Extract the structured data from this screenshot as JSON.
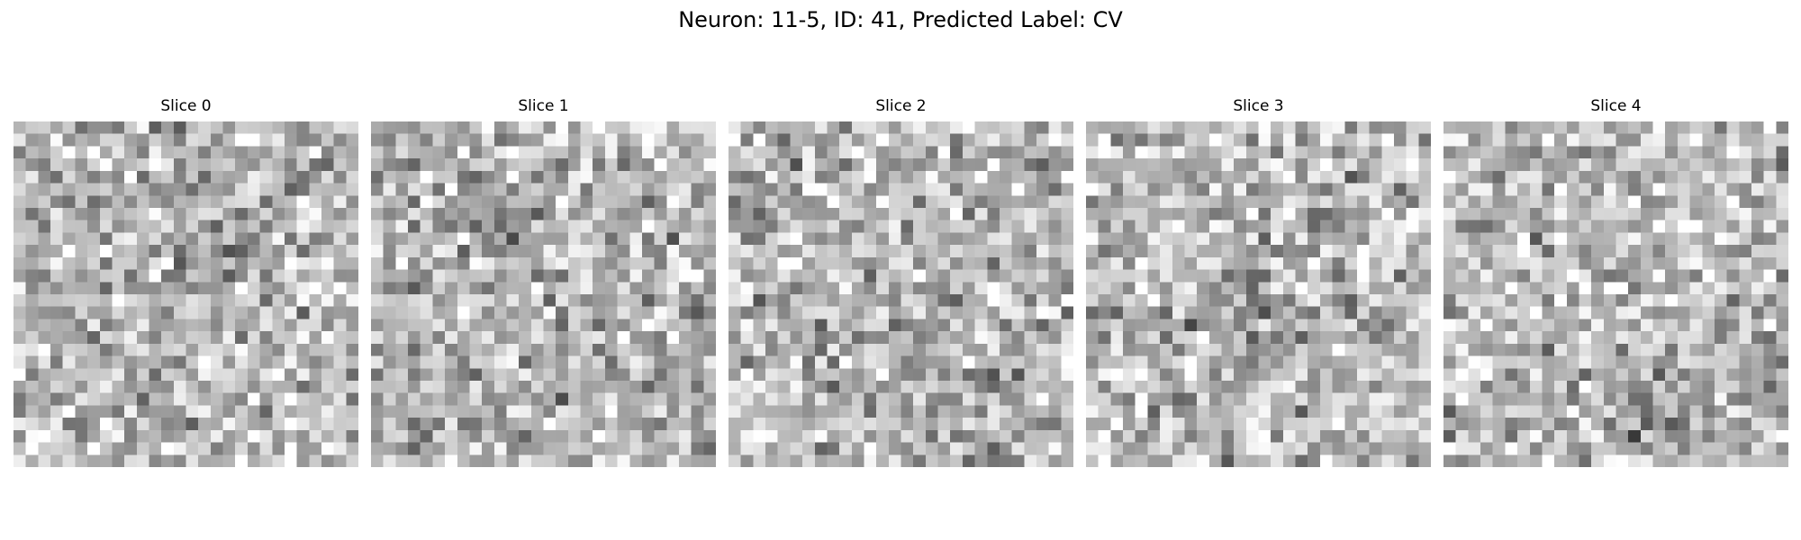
{
  "figure": {
    "title": "Neuron: 11-5, ID: 41, Predicted Label: CV",
    "colormap": "gray",
    "grid_size": 28
  },
  "slices": [
    {
      "title": "Slice 0",
      "seed": 101,
      "dark_spot": [
        0.55,
        0.35
      ]
    },
    {
      "title": "Slice 1",
      "seed": 202,
      "dark_spot": [
        0.35,
        0.25
      ]
    },
    {
      "title": "Slice 2",
      "seed": 303,
      "dark_spot": [
        0.12,
        0.18
      ]
    },
    {
      "title": "Slice 3",
      "seed": 404,
      "dark_spot": [
        0.45,
        0.55
      ]
    },
    {
      "title": "Slice 4",
      "seed": 505,
      "dark_spot": [
        0.6,
        0.85
      ]
    }
  ]
}
